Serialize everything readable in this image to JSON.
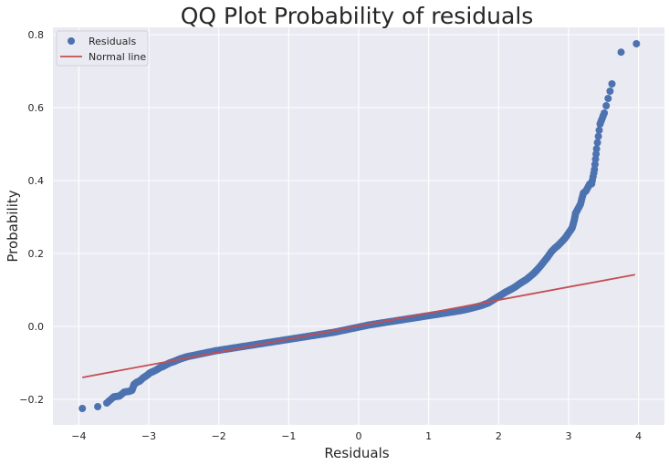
{
  "chart_data": {
    "type": "scatter",
    "title": "QQ Plot Probability of residuals",
    "xlabel": "Residuals",
    "ylabel": "Probability",
    "xlim": [
      -4.37,
      4.37
    ],
    "ylim": [
      -0.27,
      0.82
    ],
    "xticks": [
      "−4",
      "−3",
      "−2",
      "−1",
      "0",
      "1",
      "2",
      "3",
      "4"
    ],
    "xtick_values": [
      -4,
      -3,
      -2,
      -1,
      0,
      1,
      2,
      3,
      4
    ],
    "yticks": [
      "−0.2",
      "0.0",
      "0.2",
      "0.4",
      "0.6",
      "0.8"
    ],
    "ytick_values": [
      -0.2,
      0.0,
      0.2,
      0.4,
      0.6,
      0.8
    ],
    "grid": true,
    "legend_position": "top-left",
    "colors": {
      "background": "#eaeaf2",
      "grid": "#ffffff",
      "residuals": "#4c72b0",
      "normal_line": "#c44e52"
    },
    "series": [
      {
        "name": "Residuals",
        "kind": "points",
        "points": [
          [
            -3.95,
            -0.225
          ],
          [
            -3.73,
            -0.22
          ],
          [
            -3.6,
            -0.21
          ],
          [
            -3.5,
            -0.193
          ],
          [
            -3.42,
            -0.191
          ],
          [
            -3.35,
            -0.18
          ],
          [
            -3.28,
            -0.178
          ],
          [
            -3.24,
            -0.175
          ],
          [
            -3.21,
            -0.159
          ],
          [
            -3.17,
            -0.153
          ],
          [
            -3.13,
            -0.15
          ],
          [
            -3.08,
            -0.141
          ],
          [
            -3.03,
            -0.135
          ],
          [
            -2.98,
            -0.127
          ],
          [
            -2.93,
            -0.123
          ],
          [
            -2.88,
            -0.118
          ],
          [
            -2.84,
            -0.113
          ],
          [
            -2.8,
            -0.11
          ],
          [
            -2.75,
            -0.105
          ],
          [
            -2.7,
            -0.1
          ],
          [
            -2.65,
            -0.097
          ],
          [
            -2.6,
            -0.093
          ],
          [
            -2.55,
            -0.089
          ],
          [
            -2.5,
            -0.086
          ],
          [
            -2.45,
            -0.083
          ],
          [
            -2.35,
            -0.079
          ],
          [
            -2.25,
            -0.075
          ],
          [
            -2.15,
            -0.071
          ],
          [
            -2.05,
            -0.067
          ],
          [
            -1.95,
            -0.064
          ],
          [
            -1.85,
            -0.061
          ],
          [
            -1.75,
            -0.058
          ],
          [
            -1.65,
            -0.055
          ],
          [
            -1.55,
            -0.052
          ],
          [
            -1.45,
            -0.049
          ],
          [
            -1.35,
            -0.046
          ],
          [
            -1.25,
            -0.043
          ],
          [
            -1.15,
            -0.04
          ],
          [
            -1.05,
            -0.037
          ],
          [
            -0.95,
            -0.034
          ],
          [
            -0.85,
            -0.031
          ],
          [
            -0.75,
            -0.028
          ],
          [
            -0.65,
            -0.025
          ],
          [
            -0.55,
            -0.022
          ],
          [
            -0.45,
            -0.019
          ],
          [
            -0.35,
            -0.016
          ],
          [
            -0.25,
            -0.012
          ],
          [
            -0.15,
            -0.008
          ],
          [
            -0.05,
            -0.004
          ],
          [
            0.05,
            0.0
          ],
          [
            0.15,
            0.004
          ],
          [
            0.25,
            0.007
          ],
          [
            0.35,
            0.01
          ],
          [
            0.45,
            0.013
          ],
          [
            0.55,
            0.016
          ],
          [
            0.65,
            0.019
          ],
          [
            0.75,
            0.022
          ],
          [
            0.85,
            0.025
          ],
          [
            0.95,
            0.028
          ],
          [
            1.05,
            0.031
          ],
          [
            1.15,
            0.034
          ],
          [
            1.25,
            0.037
          ],
          [
            1.35,
            0.04
          ],
          [
            1.45,
            0.043
          ],
          [
            1.55,
            0.047
          ],
          [
            1.65,
            0.052
          ],
          [
            1.75,
            0.057
          ],
          [
            1.85,
            0.064
          ],
          [
            1.9,
            0.07
          ],
          [
            1.95,
            0.076
          ],
          [
            2.0,
            0.082
          ],
          [
            2.05,
            0.088
          ],
          [
            2.1,
            0.094
          ],
          [
            2.15,
            0.099
          ],
          [
            2.2,
            0.104
          ],
          [
            2.25,
            0.11
          ],
          [
            2.3,
            0.117
          ],
          [
            2.35,
            0.123
          ],
          [
            2.4,
            0.129
          ],
          [
            2.45,
            0.137
          ],
          [
            2.5,
            0.145
          ],
          [
            2.55,
            0.155
          ],
          [
            2.6,
            0.166
          ],
          [
            2.65,
            0.178
          ],
          [
            2.7,
            0.19
          ],
          [
            2.75,
            0.204
          ],
          [
            2.8,
            0.214
          ],
          [
            2.85,
            0.222
          ],
          [
            2.9,
            0.232
          ],
          [
            2.95,
            0.242
          ],
          [
            3.0,
            0.256
          ],
          [
            3.05,
            0.27
          ],
          [
            3.08,
            0.29
          ],
          [
            3.1,
            0.31
          ],
          [
            3.13,
            0.321
          ],
          [
            3.17,
            0.335
          ],
          [
            3.21,
            0.365
          ],
          [
            3.25,
            0.372
          ],
          [
            3.3,
            0.39
          ],
          [
            3.33,
            0.391
          ],
          [
            3.37,
            0.43
          ],
          [
            3.4,
            0.487
          ],
          [
            3.45,
            0.555
          ],
          [
            3.51,
            0.585
          ],
          [
            3.62,
            0.665
          ],
          [
            3.75,
            0.752
          ],
          [
            3.97,
            0.775
          ]
        ]
      },
      {
        "name": "Normal line",
        "kind": "line",
        "points": [
          [
            -3.95,
            -0.14
          ],
          [
            3.95,
            0.142
          ]
        ]
      }
    ]
  }
}
